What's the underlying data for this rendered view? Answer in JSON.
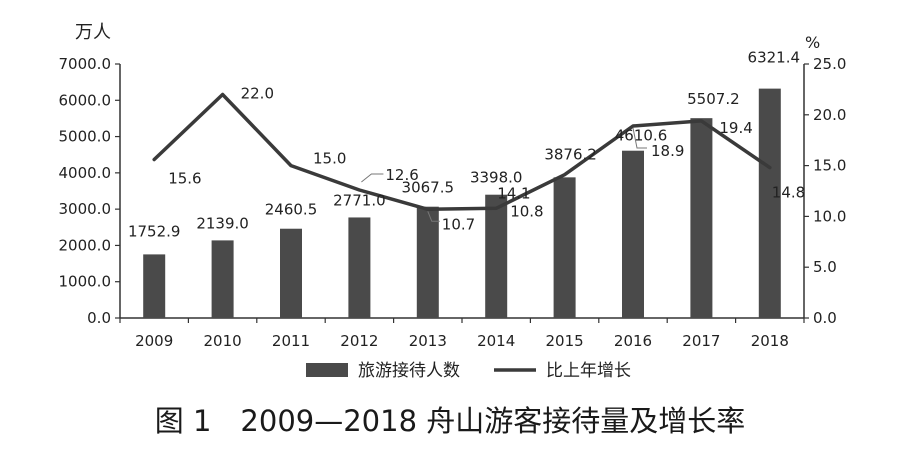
{
  "caption": "图 1　2009—2018 舟山游客接待量及增长率",
  "chart_data": {
    "type": "bar",
    "categories": [
      "2009",
      "2010",
      "2011",
      "2012",
      "2013",
      "2014",
      "2015",
      "2016",
      "2017",
      "2018"
    ],
    "series": [
      {
        "name": "旅游接待人数",
        "type": "bar",
        "axis": "left",
        "values": [
          1752.9,
          2139.0,
          2460.5,
          2771.0,
          3067.5,
          3398.0,
          3876.2,
          4610.6,
          5507.2,
          6321.4
        ],
        "labels": [
          "1752.9",
          "2139.0",
          "2460.5",
          "2771.0",
          "3067.5",
          "3398.0",
          "3876.2",
          "4610.6",
          "5507.2",
          "6321.4"
        ]
      },
      {
        "name": "比上年增长",
        "type": "line",
        "axis": "right",
        "values": [
          15.6,
          22.0,
          15.0,
          12.6,
          10.7,
          10.8,
          14.1,
          18.9,
          19.4,
          14.8
        ],
        "labels": [
          "15.6",
          "22.0",
          "15.0",
          "12.6",
          "10.7",
          "10.8",
          "14.1",
          "18.9",
          "19.4",
          "14.8"
        ]
      }
    ],
    "y_left": {
      "unit": "万人",
      "range": [
        0,
        7000
      ],
      "ticks": [
        "0.0",
        "1000.0",
        "2000.0",
        "3000.0",
        "4000.0",
        "5000.0",
        "6000.0",
        "7000.0"
      ]
    },
    "y_right": {
      "unit": "%",
      "range": [
        0,
        25
      ],
      "ticks": [
        "0.0",
        "5.0",
        "10.0",
        "15.0",
        "20.0",
        "25.0"
      ]
    },
    "grid": false,
    "legend_position": "bottom",
    "colors": {
      "bar": "#4a4a4a",
      "line": "#3a3a3a",
      "text": "#222222"
    }
  }
}
